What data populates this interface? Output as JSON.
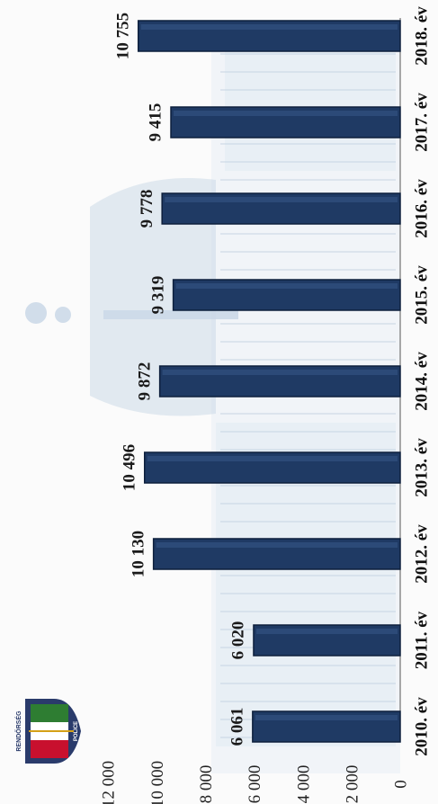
{
  "chart_data": {
    "type": "bar",
    "orientation": "rotated-90-clockwise",
    "categories": [
      "2010. év",
      "2011. év",
      "2012. év",
      "2013. év",
      "2014. év",
      "2015. év",
      "2016. év",
      "2017. év",
      "2018. év"
    ],
    "values": [
      6061,
      6020,
      10130,
      10496,
      9872,
      9319,
      9778,
      9415,
      10755
    ],
    "value_labels": [
      "6 061",
      "6 020",
      "10 130",
      "10 496",
      "9 872",
      "9 319",
      "9 778",
      "9 415",
      "10 755"
    ],
    "yticks": [
      "0",
      "2 000",
      "4 000",
      "6 000",
      "8 000",
      "10 000",
      "12 000"
    ],
    "ytick_values": [
      0,
      2000,
      4000,
      6000,
      8000,
      10000,
      12000
    ],
    "ylim": [
      0,
      12000
    ],
    "title": "",
    "xlabel": "",
    "ylabel": "",
    "grid": false,
    "legend": "none",
    "bar_color": "#1f3a64"
  },
  "logo": {
    "text_top": "RENDŐRSÉG",
    "text_bottom": "POLICE",
    "colors": [
      "#c8102e",
      "#ffffff",
      "#2e7d32"
    ]
  }
}
